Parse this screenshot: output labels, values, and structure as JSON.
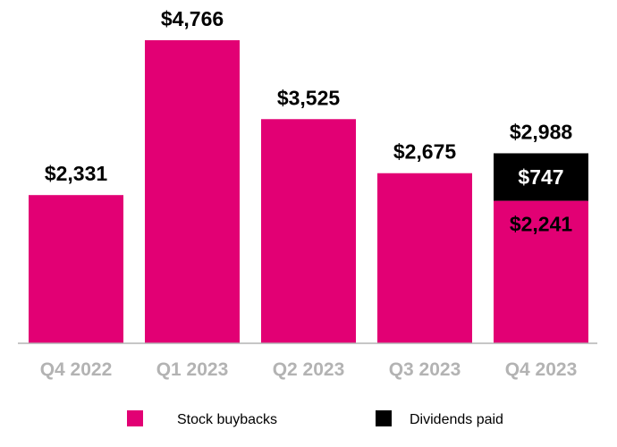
{
  "chart_data": {
    "type": "bar",
    "stacked": true,
    "categories": [
      "Q4 2022",
      "Q1 2023",
      "Q2 2023",
      "Q3 2023",
      "Q4 2023"
    ],
    "series": [
      {
        "name": "Stock buybacks",
        "color": "#E20074",
        "values": [
          2331,
          4766,
          3525,
          2675,
          2241
        ]
      },
      {
        "name": "Dividends paid",
        "color": "#000000",
        "values": [
          0,
          0,
          0,
          0,
          747
        ]
      }
    ],
    "total_labels": [
      "$2,331",
      "$4,766",
      "$3,525",
      "$2,675",
      "$2,988"
    ],
    "segment_labels": [
      {
        "category": "Q4 2023",
        "series": "Stock buybacks",
        "label": "$2,241"
      },
      {
        "category": "Q4 2023",
        "series": "Dividends paid",
        "label": "$747"
      }
    ],
    "ylim": [
      0,
      4766
    ],
    "grid": false,
    "legend_position": "bottom",
    "axis_color": "#b3b3b3"
  }
}
